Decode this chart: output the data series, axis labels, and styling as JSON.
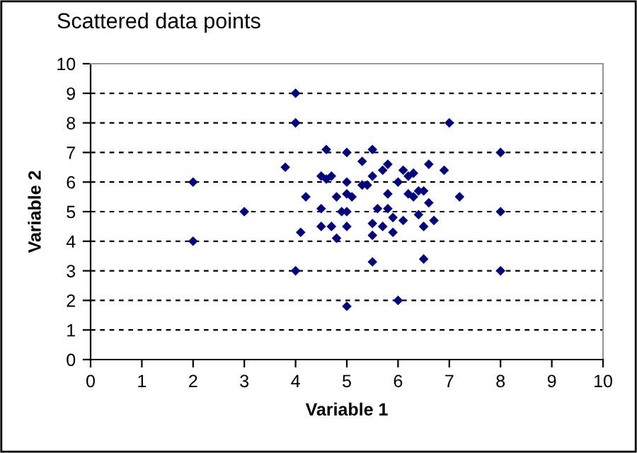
{
  "chart_data": {
    "type": "scatter",
    "title": "Scattered data points",
    "xlabel": "Variable 1",
    "ylabel": "Variable 2",
    "x": [
      2,
      2,
      3,
      4,
      4,
      4,
      3.8,
      4.1,
      4.2,
      4.5,
      4.6,
      4.6,
      4.7,
      4.5,
      4.5,
      4.7,
      4.8,
      4.8,
      4.9,
      5.0,
      5.0,
      5.0,
      5.0,
      5.0,
      5.0,
      5.1,
      5.3,
      5.3,
      5.4,
      5.5,
      5.5,
      5.5,
      5.5,
      5.5,
      5.6,
      5.7,
      5.7,
      5.8,
      5.8,
      5.8,
      5.9,
      5.9,
      6.0,
      6.0,
      6.1,
      6.1,
      6.2,
      6.2,
      6.3,
      6.4,
      6.4,
      6.5,
      6.5,
      6.5,
      6.6,
      6.6,
      6.7,
      7.0,
      6.9,
      7.2,
      8,
      8,
      8,
      6.3
    ],
    "values": [
      6,
      4,
      5,
      9,
      8,
      3,
      6.5,
      4.3,
      5.5,
      6.2,
      7.1,
      6.1,
      6.2,
      5.1,
      4.5,
      4.5,
      4.1,
      5.5,
      5.0,
      5.6,
      6.0,
      7.0,
      5.0,
      4.5,
      1.8,
      5.5,
      5.9,
      6.7,
      5.9,
      7.1,
      6.2,
      4.6,
      4.2,
      3.3,
      5.1,
      6.4,
      4.5,
      6.6,
      5.6,
      5.1,
      4.8,
      4.3,
      6.0,
      2.0,
      4.7,
      6.4,
      5.6,
      6.2,
      6.3,
      5.7,
      4.9,
      5.7,
      4.5,
      3.4,
      6.6,
      5.3,
      4.7,
      8.0,
      6.4,
      5.5,
      7,
      5,
      3,
      5.5
    ],
    "color": "#000080",
    "marker": "diamond",
    "grid": "y",
    "line_style": "dashed",
    "xlim": [
      0,
      10
    ],
    "ylim": [
      0,
      10
    ],
    "xticks": [
      0,
      1,
      2,
      3,
      4,
      5,
      6,
      7,
      8,
      9,
      10
    ],
    "yticks": [
      0,
      1,
      2,
      3,
      4,
      5,
      6,
      7,
      8,
      9,
      10
    ]
  }
}
